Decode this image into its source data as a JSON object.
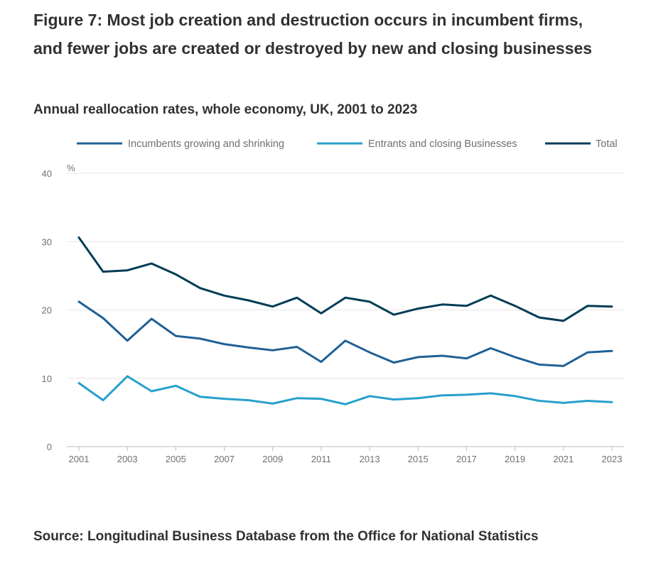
{
  "title": "Figure 7: Most job creation and destruction occurs in incumbent firms, and fewer jobs are created or destroyed by new and closing businesses",
  "subtitle": "Annual reallocation rates, whole economy, UK, 2001 to 2023",
  "source": "Source: Longitudinal Business Database from the Office for National Statistics",
  "chart_data": {
    "type": "line",
    "title": "Annual reallocation rates, whole economy, UK, 2001 to 2023",
    "ylabel": "%",
    "xlabel": "",
    "ylim": [
      0,
      40
    ],
    "xlim": [
      2001,
      2023
    ],
    "yticks": [
      0,
      10,
      20,
      30,
      40
    ],
    "xticks": [
      2001,
      2003,
      2005,
      2007,
      2009,
      2011,
      2013,
      2015,
      2017,
      2019,
      2021,
      2023
    ],
    "grid": true,
    "legend_position": "top",
    "x": [
      2001,
      2002,
      2003,
      2004,
      2005,
      2006,
      2007,
      2008,
      2009,
      2010,
      2011,
      2012,
      2013,
      2014,
      2015,
      2016,
      2017,
      2018,
      2019,
      2020,
      2021,
      2022,
      2023
    ],
    "series": [
      {
        "name": "Incumbents growing and shrinking",
        "color": "#206095",
        "values": [
          21.2,
          18.8,
          15.5,
          18.7,
          16.2,
          15.8,
          15.0,
          14.5,
          14.1,
          14.6,
          12.4,
          15.5,
          13.8,
          12.3,
          13.1,
          13.3,
          12.9,
          14.4,
          13.1,
          12.0,
          11.8,
          13.8,
          14.0
        ]
      },
      {
        "name": "Entrants and closing Businesses",
        "color": "#27a0cc",
        "values": [
          9.3,
          6.8,
          10.3,
          8.1,
          8.9,
          7.3,
          7.0,
          6.8,
          6.3,
          7.1,
          7.0,
          6.2,
          7.4,
          6.9,
          7.1,
          7.5,
          7.6,
          7.8,
          7.4,
          6.7,
          6.4,
          6.7,
          6.5
        ]
      },
      {
        "name": "Total",
        "color": "#003c57",
        "values": [
          30.6,
          25.6,
          25.8,
          26.8,
          25.2,
          23.2,
          22.1,
          21.4,
          20.5,
          21.8,
          19.5,
          21.8,
          21.2,
          19.3,
          20.2,
          20.8,
          20.6,
          22.1,
          20.6,
          18.9,
          18.4,
          20.6,
          20.5
        ]
      }
    ]
  }
}
